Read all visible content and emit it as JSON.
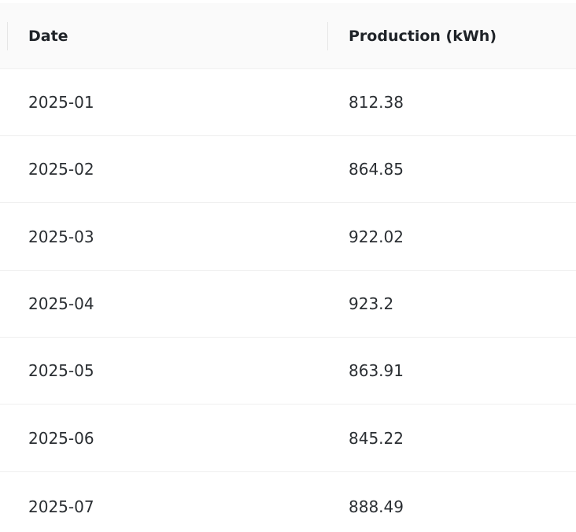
{
  "table": {
    "columns": [
      "Date",
      "Production (kWh)"
    ],
    "rows": [
      {
        "date": "2025-01",
        "production": "812.38"
      },
      {
        "date": "2025-02",
        "production": "864.85"
      },
      {
        "date": "2025-03",
        "production": "922.02"
      },
      {
        "date": "2025-04",
        "production": "923.2"
      },
      {
        "date": "2025-05",
        "production": "863.91"
      },
      {
        "date": "2025-06",
        "production": "845.22"
      },
      {
        "date": "2025-07",
        "production": "888.49"
      }
    ]
  }
}
